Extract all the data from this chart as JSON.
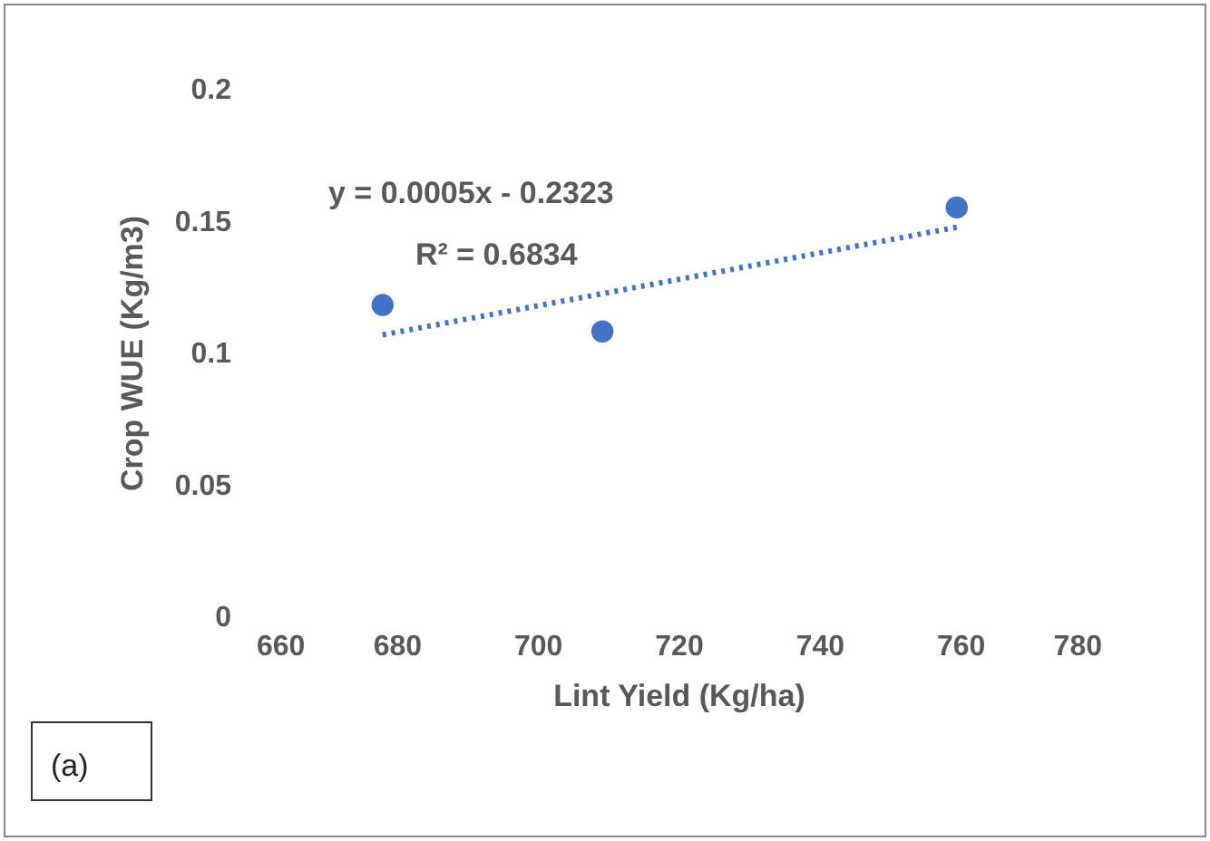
{
  "chart_data": {
    "type": "scatter",
    "xlabel": "Lint Yield (Kg/ha)",
    "ylabel": "Crop WUE (Kg/m3)",
    "xlim": [
      660,
      780
    ],
    "xticks": [
      660,
      680,
      700,
      720,
      740,
      760,
      780
    ],
    "ylim": [
      0,
      0.2
    ],
    "yticks": [
      0,
      0.05,
      0.1,
      0.15,
      0.2
    ],
    "grid": false,
    "marker": "circle",
    "series": [
      {
        "color": "#4472c4",
        "x": [
          678,
          709.2,
          759.5
        ],
        "values": [
          0.118,
          0.108,
          0.155
        ]
      },
      {
        "type": "line",
        "color": "#4472c4",
        "line_style": "dotted",
        "marker": "none",
        "x": [
          678,
          759.5
        ],
        "values": [
          0.1067,
          0.1475
        ]
      }
    ],
    "annotations": [
      "y = 0.0005x - 0.2323",
      "R² = 0.6834",
      "(a)"
    ]
  }
}
